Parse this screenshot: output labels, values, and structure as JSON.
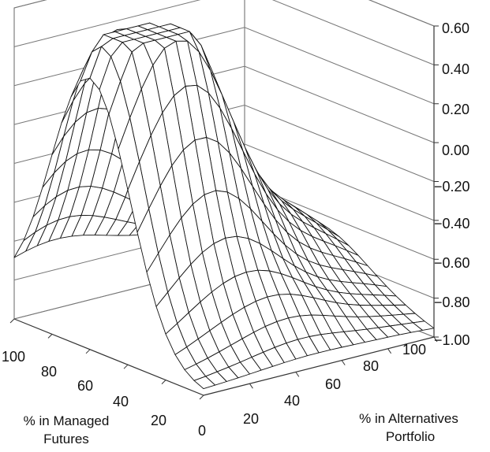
{
  "chart_data": {
    "type": "surface",
    "z_axis": {
      "ticks": [
        "0.60",
        "0.40",
        "0.20",
        "0.00",
        "−0.20",
        "−0.40",
        "−0.60",
        "−0.80",
        "−1.00"
      ],
      "range": [
        -1.0,
        0.6
      ]
    },
    "x_axis": {
      "label_lines": [
        "% in Managed",
        "Futures"
      ],
      "ticks": [
        "100",
        "80",
        "60",
        "40",
        "20",
        "0"
      ],
      "range": [
        0,
        100
      ]
    },
    "y_axis": {
      "label_lines": [
        "% in Alternatives",
        "Portfolio"
      ],
      "ticks": [
        "20",
        "40",
        "60",
        "80",
        "100"
      ],
      "range": [
        0,
        100
      ]
    },
    "grid": "horizontal",
    "colors": {
      "mesh_fill": "#ffffff",
      "mesh_line": "#111111",
      "walls": "#666666"
    }
  }
}
